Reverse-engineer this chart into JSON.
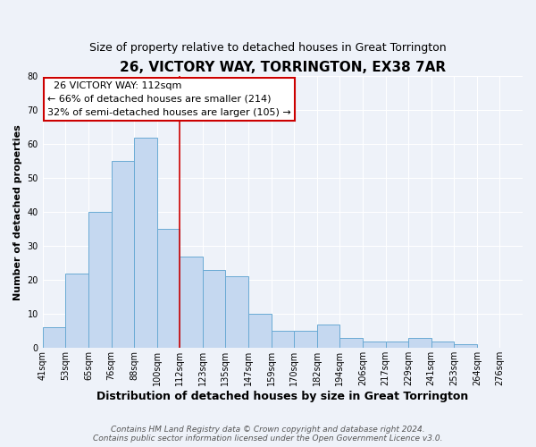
{
  "title": "26, VICTORY WAY, TORRINGTON, EX38 7AR",
  "subtitle": "Size of property relative to detached houses in Great Torrington",
  "xlabel": "Distribution of detached houses by size in Great Torrington",
  "ylabel": "Number of detached properties",
  "footer_line1": "Contains HM Land Registry data © Crown copyright and database right 2024.",
  "footer_line2": "Contains public sector information licensed under the Open Government Licence v3.0.",
  "categories": [
    "41sqm",
    "53sqm",
    "65sqm",
    "76sqm",
    "88sqm",
    "100sqm",
    "112sqm",
    "123sqm",
    "135sqm",
    "147sqm",
    "159sqm",
    "170sqm",
    "182sqm",
    "194sqm",
    "206sqm",
    "217sqm",
    "229sqm",
    "241sqm",
    "253sqm",
    "264sqm",
    "276sqm"
  ],
  "values": [
    6,
    22,
    40,
    55,
    62,
    35,
    27,
    23,
    21,
    10,
    5,
    5,
    7,
    3,
    2,
    2,
    3,
    2,
    1,
    0,
    0
  ],
  "bar_color": "#c5d8f0",
  "bar_edge_color": "#6aaad4",
  "vline_x_index": 6,
  "vline_color": "#cc0000",
  "annotation_box_edge_color": "#cc0000",
  "annotation_title": "26 VICTORY WAY: 112sqm",
  "annotation_line1": "← 66% of detached houses are smaller (214)",
  "annotation_line2": "32% of semi-detached houses are larger (105) →",
  "ylim": [
    0,
    80
  ],
  "yticks": [
    0,
    10,
    20,
    30,
    40,
    50,
    60,
    70,
    80
  ],
  "background_color": "#eef2f9",
  "grid_color": "#ffffff",
  "title_fontsize": 11,
  "subtitle_fontsize": 9,
  "xlabel_fontsize": 9,
  "ylabel_fontsize": 8,
  "tick_fontsize": 7,
  "annotation_fontsize": 8,
  "footer_fontsize": 6.5
}
